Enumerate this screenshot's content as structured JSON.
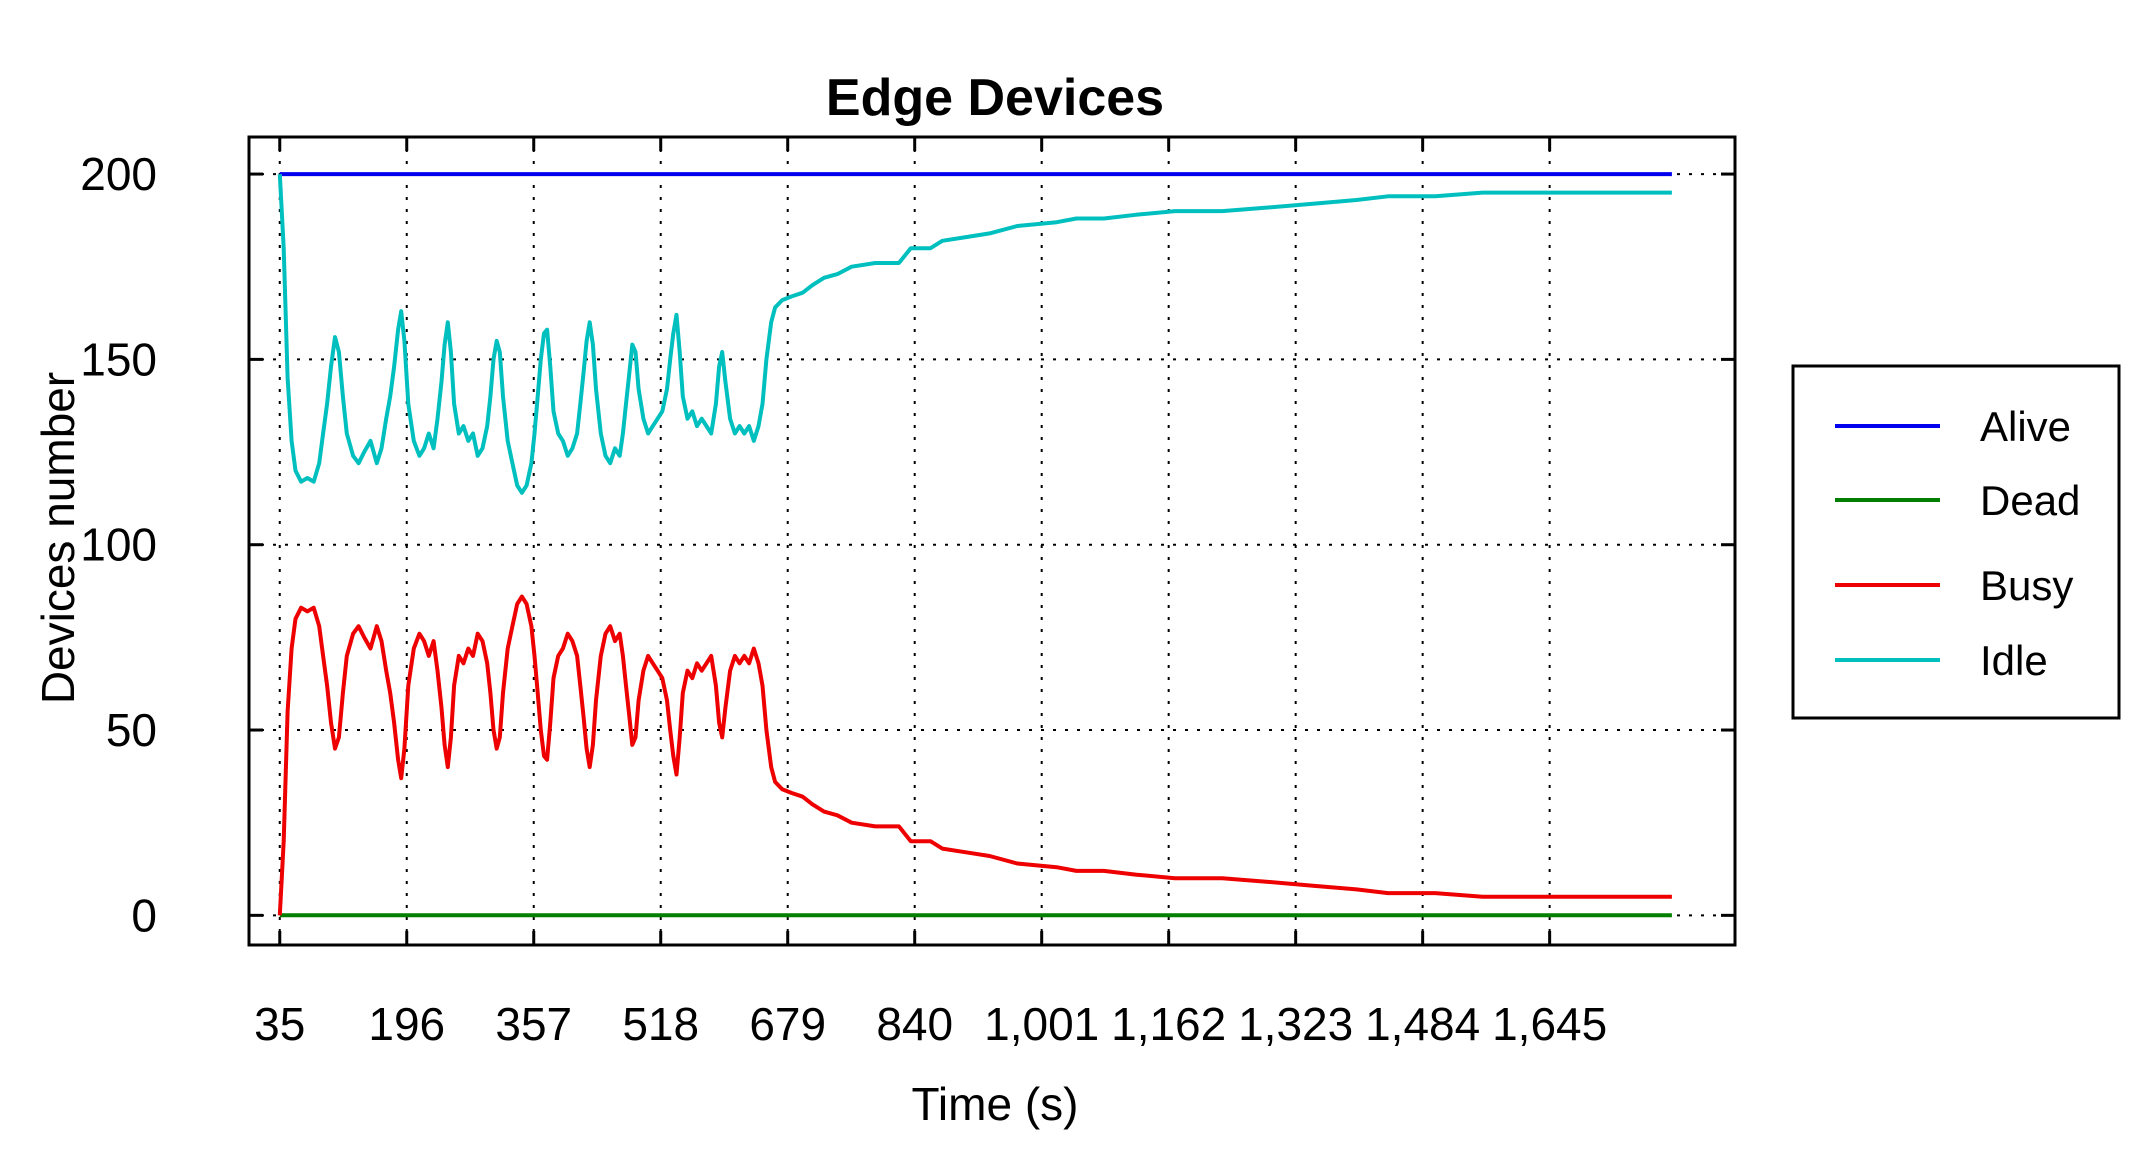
{
  "chart_data": {
    "type": "line",
    "title": "Edge Devices",
    "xlabel": "Time (s)",
    "ylabel": "Devices number",
    "x_ticks": [
      "35",
      "196",
      "357",
      "518",
      "679",
      "840",
      "1,001",
      "1,162",
      "1,323",
      "1,484",
      "1,645"
    ],
    "x_tick_values": [
      35,
      196,
      357,
      518,
      679,
      840,
      1001,
      1162,
      1323,
      1484,
      1645
    ],
    "y_ticks": [
      0,
      50,
      100,
      150,
      200
    ],
    "xlim": [
      -4,
      1880
    ],
    "ylim": [
      -8,
      210
    ],
    "grid": true,
    "legend_position": "right",
    "series": [
      {
        "name": "Alive",
        "color": "#0000ee",
        "points": [
          [
            35,
            200
          ],
          [
            1800,
            200
          ]
        ]
      },
      {
        "name": "Dead",
        "color": "#007f00",
        "points": [
          [
            35,
            0
          ],
          [
            1800,
            0
          ]
        ]
      },
      {
        "name": "Busy",
        "color": "#ee0000",
        "points": [
          [
            35,
            0
          ],
          [
            40,
            20
          ],
          [
            45,
            55
          ],
          [
            50,
            72
          ],
          [
            55,
            80
          ],
          [
            62,
            83
          ],
          [
            70,
            82
          ],
          [
            78,
            83
          ],
          [
            85,
            78
          ],
          [
            90,
            70
          ],
          [
            95,
            62
          ],
          [
            100,
            52
          ],
          [
            105,
            45
          ],
          [
            110,
            48
          ],
          [
            115,
            60
          ],
          [
            120,
            70
          ],
          [
            128,
            76
          ],
          [
            135,
            78
          ],
          [
            142,
            75
          ],
          [
            150,
            72
          ],
          [
            158,
            78
          ],
          [
            164,
            74
          ],
          [
            170,
            66
          ],
          [
            175,
            60
          ],
          [
            180,
            52
          ],
          [
            185,
            42
          ],
          [
            189,
            37
          ],
          [
            193,
            45
          ],
          [
            198,
            62
          ],
          [
            205,
            72
          ],
          [
            212,
            76
          ],
          [
            218,
            74
          ],
          [
            224,
            70
          ],
          [
            230,
            74
          ],
          [
            235,
            66
          ],
          [
            240,
            56
          ],
          [
            244,
            46
          ],
          [
            248,
            40
          ],
          [
            252,
            48
          ],
          [
            256,
            62
          ],
          [
            262,
            70
          ],
          [
            268,
            68
          ],
          [
            274,
            72
          ],
          [
            280,
            70
          ],
          [
            286,
            76
          ],
          [
            292,
            74
          ],
          [
            298,
            68
          ],
          [
            302,
            60
          ],
          [
            306,
            50
          ],
          [
            310,
            45
          ],
          [
            314,
            48
          ],
          [
            318,
            60
          ],
          [
            324,
            72
          ],
          [
            330,
            78
          ],
          [
            336,
            84
          ],
          [
            342,
            86
          ],
          [
            348,
            84
          ],
          [
            354,
            78
          ],
          [
            358,
            70
          ],
          [
            362,
            60
          ],
          [
            366,
            50
          ],
          [
            370,
            43
          ],
          [
            374,
            42
          ],
          [
            378,
            52
          ],
          [
            382,
            64
          ],
          [
            388,
            70
          ],
          [
            394,
            72
          ],
          [
            400,
            76
          ],
          [
            406,
            74
          ],
          [
            412,
            70
          ],
          [
            416,
            62
          ],
          [
            420,
            54
          ],
          [
            424,
            45
          ],
          [
            428,
            40
          ],
          [
            432,
            46
          ],
          [
            436,
            58
          ],
          [
            442,
            70
          ],
          [
            448,
            76
          ],
          [
            454,
            78
          ],
          [
            460,
            74
          ],
          [
            466,
            76
          ],
          [
            470,
            70
          ],
          [
            474,
            62
          ],
          [
            478,
            54
          ],
          [
            482,
            46
          ],
          [
            486,
            48
          ],
          [
            490,
            58
          ],
          [
            496,
            66
          ],
          [
            502,
            70
          ],
          [
            508,
            68
          ],
          [
            514,
            66
          ],
          [
            520,
            64
          ],
          [
            526,
            58
          ],
          [
            530,
            50
          ],
          [
            534,
            43
          ],
          [
            538,
            38
          ],
          [
            542,
            48
          ],
          [
            546,
            60
          ],
          [
            552,
            66
          ],
          [
            558,
            64
          ],
          [
            564,
            68
          ],
          [
            570,
            66
          ],
          [
            576,
            68
          ],
          [
            582,
            70
          ],
          [
            588,
            62
          ],
          [
            592,
            52
          ],
          [
            596,
            48
          ],
          [
            600,
            56
          ],
          [
            606,
            66
          ],
          [
            612,
            70
          ],
          [
            618,
            68
          ],
          [
            624,
            70
          ],
          [
            630,
            68
          ],
          [
            636,
            72
          ],
          [
            642,
            68
          ],
          [
            647,
            62
          ],
          [
            652,
            50
          ],
          [
            658,
            40
          ],
          [
            663,
            36
          ],
          [
            672,
            34
          ],
          [
            684,
            33
          ],
          [
            698,
            32
          ],
          [
            710,
            30
          ],
          [
            725,
            28
          ],
          [
            742,
            27
          ],
          [
            760,
            25
          ],
          [
            790,
            24
          ],
          [
            820,
            24
          ],
          [
            835,
            20
          ],
          [
            860,
            20
          ],
          [
            875,
            18
          ],
          [
            905,
            17
          ],
          [
            935,
            16
          ],
          [
            970,
            14
          ],
          [
            1020,
            13
          ],
          [
            1045,
            12
          ],
          [
            1080,
            12
          ],
          [
            1120,
            11
          ],
          [
            1170,
            10
          ],
          [
            1230,
            10
          ],
          [
            1290,
            9
          ],
          [
            1345,
            8
          ],
          [
            1400,
            7
          ],
          [
            1440,
            6
          ],
          [
            1500,
            6
          ],
          [
            1560,
            5
          ],
          [
            1650,
            5
          ],
          [
            1800,
            5
          ]
        ]
      },
      {
        "name": "Idle",
        "color": "#00bfbf",
        "points": [
          [
            35,
            200
          ],
          [
            40,
            180
          ],
          [
            45,
            145
          ],
          [
            50,
            128
          ],
          [
            55,
            120
          ],
          [
            62,
            117
          ],
          [
            70,
            118
          ],
          [
            78,
            117
          ],
          [
            85,
            122
          ],
          [
            90,
            130
          ],
          [
            95,
            138
          ],
          [
            100,
            148
          ],
          [
            105,
            156
          ],
          [
            110,
            152
          ],
          [
            115,
            140
          ],
          [
            120,
            130
          ],
          [
            128,
            124
          ],
          [
            135,
            122
          ],
          [
            142,
            125
          ],
          [
            150,
            128
          ],
          [
            158,
            122
          ],
          [
            164,
            126
          ],
          [
            170,
            134
          ],
          [
            175,
            140
          ],
          [
            180,
            148
          ],
          [
            185,
            158
          ],
          [
            189,
            163
          ],
          [
            193,
            155
          ],
          [
            198,
            138
          ],
          [
            205,
            128
          ],
          [
            212,
            124
          ],
          [
            218,
            126
          ],
          [
            224,
            130
          ],
          [
            230,
            126
          ],
          [
            235,
            134
          ],
          [
            240,
            144
          ],
          [
            244,
            154
          ],
          [
            248,
            160
          ],
          [
            252,
            152
          ],
          [
            256,
            138
          ],
          [
            262,
            130
          ],
          [
            268,
            132
          ],
          [
            274,
            128
          ],
          [
            280,
            130
          ],
          [
            286,
            124
          ],
          [
            292,
            126
          ],
          [
            298,
            132
          ],
          [
            302,
            140
          ],
          [
            306,
            150
          ],
          [
            310,
            155
          ],
          [
            314,
            152
          ],
          [
            318,
            140
          ],
          [
            324,
            128
          ],
          [
            330,
            122
          ],
          [
            336,
            116
          ],
          [
            342,
            114
          ],
          [
            348,
            116
          ],
          [
            354,
            122
          ],
          [
            358,
            130
          ],
          [
            362,
            140
          ],
          [
            366,
            150
          ],
          [
            370,
            157
          ],
          [
            374,
            158
          ],
          [
            378,
            148
          ],
          [
            382,
            136
          ],
          [
            388,
            130
          ],
          [
            394,
            128
          ],
          [
            400,
            124
          ],
          [
            406,
            126
          ],
          [
            412,
            130
          ],
          [
            416,
            138
          ],
          [
            420,
            146
          ],
          [
            424,
            155
          ],
          [
            428,
            160
          ],
          [
            432,
            154
          ],
          [
            436,
            142
          ],
          [
            442,
            130
          ],
          [
            448,
            124
          ],
          [
            454,
            122
          ],
          [
            460,
            126
          ],
          [
            466,
            124
          ],
          [
            470,
            130
          ],
          [
            474,
            138
          ],
          [
            478,
            146
          ],
          [
            482,
            154
          ],
          [
            486,
            152
          ],
          [
            490,
            142
          ],
          [
            496,
            134
          ],
          [
            502,
            130
          ],
          [
            508,
            132
          ],
          [
            514,
            134
          ],
          [
            520,
            136
          ],
          [
            526,
            142
          ],
          [
            530,
            150
          ],
          [
            534,
            157
          ],
          [
            538,
            162
          ],
          [
            542,
            152
          ],
          [
            546,
            140
          ],
          [
            552,
            134
          ],
          [
            558,
            136
          ],
          [
            564,
            132
          ],
          [
            570,
            134
          ],
          [
            576,
            132
          ],
          [
            582,
            130
          ],
          [
            588,
            138
          ],
          [
            592,
            148
          ],
          [
            596,
            152
          ],
          [
            600,
            144
          ],
          [
            606,
            134
          ],
          [
            612,
            130
          ],
          [
            618,
            132
          ],
          [
            624,
            130
          ],
          [
            630,
            132
          ],
          [
            636,
            128
          ],
          [
            642,
            132
          ],
          [
            647,
            138
          ],
          [
            652,
            150
          ],
          [
            658,
            160
          ],
          [
            663,
            164
          ],
          [
            672,
            166
          ],
          [
            684,
            167
          ],
          [
            698,
            168
          ],
          [
            710,
            170
          ],
          [
            725,
            172
          ],
          [
            742,
            173
          ],
          [
            760,
            175
          ],
          [
            790,
            176
          ],
          [
            820,
            176
          ],
          [
            835,
            180
          ],
          [
            860,
            180
          ],
          [
            875,
            182
          ],
          [
            905,
            183
          ],
          [
            935,
            184
          ],
          [
            970,
            186
          ],
          [
            1020,
            187
          ],
          [
            1045,
            188
          ],
          [
            1080,
            188
          ],
          [
            1120,
            189
          ],
          [
            1170,
            190
          ],
          [
            1230,
            190
          ],
          [
            1290,
            191
          ],
          [
            1345,
            192
          ],
          [
            1400,
            193
          ],
          [
            1440,
            194
          ],
          [
            1500,
            194
          ],
          [
            1560,
            195
          ],
          [
            1650,
            195
          ],
          [
            1800,
            195
          ]
        ]
      }
    ]
  }
}
